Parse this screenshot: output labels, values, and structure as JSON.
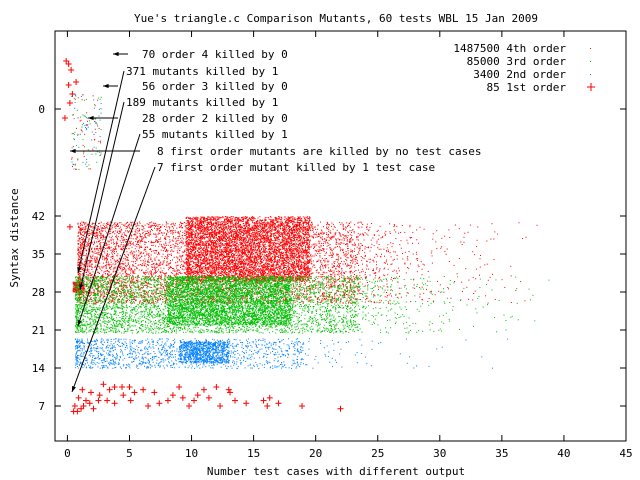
{
  "chart_data": {
    "type": "scatter",
    "title": "Yue's triangle.c Comparison Mutants, 60 tests   WBL 15 Jan 2009",
    "xlabel": "Number test cases with different output",
    "ylabel": "Syntax distance",
    "xlim": [
      -1,
      45
    ],
    "x_ticks": [
      "0",
      "5",
      "10",
      "15",
      "20",
      "25",
      "30",
      "35",
      "40",
      "45"
    ],
    "y_ticks": [
      "7",
      "14",
      "21",
      "28",
      "35",
      "42",
      "0"
    ],
    "legend_position": "top-right",
    "series": [
      {
        "name": "1487500 4th order",
        "color": "#ff0000",
        "marker": "dot",
        "core": {
          "x": [
            0.8,
            23.4
          ],
          "y": [
            26,
            41
          ]
        },
        "dense": {
          "x": [
            9.5,
            19.5
          ],
          "y": [
            30,
            42
          ]
        },
        "cluster_at_zero": {
          "x": [
            0.4,
            1.3
          ],
          "y": [
            28,
            30
          ]
        }
      },
      {
        "name": "85000 3rd order",
        "color": "#00c000",
        "marker": "dot",
        "core": {
          "x": [
            0.6,
            23.4
          ],
          "y": [
            20.5,
            31
          ]
        },
        "dense": {
          "x": [
            8,
            18
          ],
          "y": [
            22,
            31
          ]
        }
      },
      {
        "name": "3400 2nd order",
        "color": "#0080ff",
        "marker": "dot",
        "core": {
          "x": [
            0.6,
            19
          ],
          "y": [
            14,
            19.5
          ]
        },
        "dense": {
          "x": [
            9,
            13
          ],
          "y": [
            15,
            19
          ]
        }
      },
      {
        "name": "85 1st order",
        "color": "#ff0000",
        "marker": "plus",
        "points": [
          [
            0.5,
            6
          ],
          [
            0.8,
            6
          ],
          [
            1.1,
            6.5
          ],
          [
            0.6,
            7
          ],
          [
            1.3,
            7
          ],
          [
            1.8,
            7.5
          ],
          [
            2.1,
            6.5
          ],
          [
            2.5,
            8
          ],
          [
            0.9,
            8.5
          ],
          [
            3.2,
            8
          ],
          [
            3.8,
            7.5
          ],
          [
            4.5,
            9
          ],
          [
            5.1,
            8
          ],
          [
            5.4,
            9.5
          ],
          [
            6.5,
            7
          ],
          [
            7.4,
            7.5
          ],
          [
            8.1,
            8
          ],
          [
            8.5,
            9
          ],
          [
            9.3,
            8.5
          ],
          [
            9.8,
            7
          ],
          [
            10.2,
            8
          ],
          [
            10.5,
            9
          ],
          [
            11.4,
            8.5
          ],
          [
            12.3,
            7
          ],
          [
            13.1,
            9.5
          ],
          [
            13.5,
            8
          ],
          [
            14.4,
            7.5
          ],
          [
            15.8,
            8
          ],
          [
            16.1,
            7
          ],
          [
            16.3,
            8.5
          ],
          [
            17,
            7.5
          ],
          [
            18.9,
            7
          ],
          [
            22,
            6.5
          ],
          [
            3.8,
            10.5
          ],
          [
            2.9,
            11
          ],
          [
            3.4,
            10
          ],
          [
            4.4,
            10.5
          ],
          [
            1.9,
            9.5
          ],
          [
            2.6,
            9
          ],
          [
            1.5,
            8
          ],
          [
            1.2,
            10
          ],
          [
            5,
            10.5
          ],
          [
            6.1,
            10
          ],
          [
            7,
            9.5
          ],
          [
            9,
            10.5
          ],
          [
            11,
            10
          ],
          [
            12,
            10.5
          ],
          [
            13,
            10
          ],
          [
            -0.2,
            63
          ],
          [
            0.2,
            58
          ],
          [
            0.4,
            55
          ],
          [
            0.1,
            52
          ],
          [
            0.7,
            51
          ],
          [
            0.3,
            47
          ],
          [
            0.1,
            45
          ],
          [
            -0.1,
            44
          ],
          [
            0.2,
            40
          ]
        ]
      }
    ],
    "annotations": [
      "70 order 4 killed by 0",
      "371 mutants killed by 1",
      "56 order 3 killed by 0",
      "189 mutants killed by 1",
      "28 order 2 killed by 0",
      "55 mutants killed by 1",
      "8 first order mutants are killed by no test cases",
      "7 first order mutant killed by 1 test case"
    ]
  }
}
